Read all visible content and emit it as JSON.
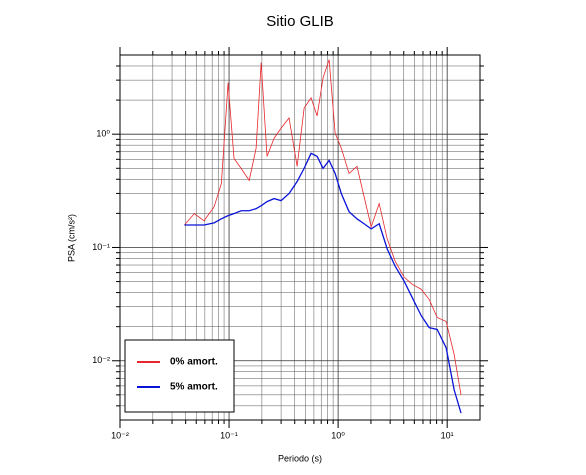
{
  "chart_data": {
    "type": "line",
    "title": "Sitio GLIB",
    "xlabel": "Periodo (s)",
    "ylabel": "PSA (cm/s²)",
    "log_x": true,
    "log_y": true,
    "grid": true,
    "legend": "lower left",
    "xlim": [
      0.01,
      20
    ],
    "ylim": [
      0.003,
      5
    ],
    "xticks": [
      {
        "value": 0.01,
        "label": "10⁻²"
      },
      {
        "value": 0.1,
        "label": "10⁻¹"
      },
      {
        "value": 1,
        "label": "10⁰"
      },
      {
        "value": 10,
        "label": "10¹"
      }
    ],
    "yticks": [
      {
        "value": 0.01,
        "label": "10⁻²"
      },
      {
        "value": 0.1,
        "label": "10⁻¹"
      },
      {
        "value": 1,
        "label": "10⁰"
      }
    ],
    "x": [
      0.039,
      0.048,
      0.059,
      0.073,
      0.085,
      0.098,
      0.111,
      0.129,
      0.153,
      0.177,
      0.197,
      0.223,
      0.259,
      0.3,
      0.355,
      0.421,
      0.488,
      0.565,
      0.642,
      0.728,
      0.827,
      0.939,
      1.07,
      1.26,
      1.49,
      1.73,
      2.01,
      2.38,
      2.82,
      3.33,
      4.03,
      4.77,
      5.77,
      6.84,
      8.1,
      9.79,
      11.6,
      13.4
    ],
    "series": [
      {
        "name": "0% amort.",
        "color": "#e8262b",
        "width": 0.8,
        "values": [
          0.158,
          0.199,
          0.172,
          0.229,
          0.367,
          2.84,
          0.612,
          0.499,
          0.39,
          0.751,
          4.28,
          0.637,
          0.921,
          1.13,
          1.39,
          0.52,
          1.7,
          2.09,
          1.45,
          3.15,
          4.55,
          1.02,
          0.751,
          0.45,
          0.52,
          0.281,
          0.152,
          0.244,
          0.119,
          0.0759,
          0.0547,
          0.0474,
          0.0428,
          0.0348,
          0.0241,
          0.0222,
          0.0113,
          0.00499
        ]
      },
      {
        "name": "5% amort.",
        "color": "#0a14d8",
        "width": 1.3,
        "values": [
          0.158,
          0.158,
          0.158,
          0.165,
          0.179,
          0.191,
          0.199,
          0.211,
          0.211,
          0.22,
          0.234,
          0.254,
          0.27,
          0.259,
          0.299,
          0.382,
          0.499,
          0.678,
          0.637,
          0.499,
          0.587,
          0.45,
          0.299,
          0.207,
          0.179,
          0.162,
          0.146,
          0.162,
          0.097,
          0.0685,
          0.0504,
          0.0363,
          0.0251,
          0.0196,
          0.0189,
          0.013,
          0.00552,
          0.00345
        ]
      }
    ]
  }
}
